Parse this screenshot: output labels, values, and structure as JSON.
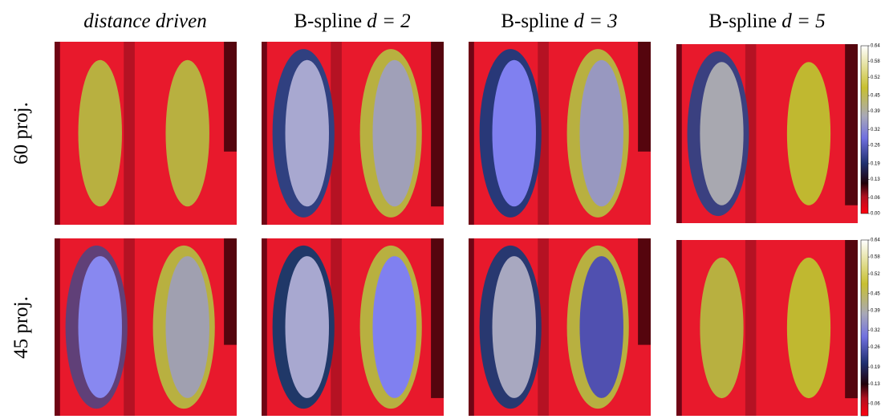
{
  "columns": [
    {
      "text": "distance driven"
    },
    {
      "text": "B-spline",
      "math": "d = 2"
    },
    {
      "text": "B-spline",
      "math": "d = 3"
    },
    {
      "text": "B-spline",
      "math": "d = 5"
    }
  ],
  "rows": [
    "60 proj.",
    "45 proj."
  ],
  "colorbars": [
    {
      "lim": [
        0,
        0.64
      ],
      "ticks": [
        {
          "value": 0,
          "label": "0.00"
        },
        {
          "value": 0.06,
          "label": "0.06"
        },
        {
          "value": 0.13,
          "label": "0.13"
        },
        {
          "value": 0.19,
          "label": "0.19"
        },
        {
          "value": 0.26,
          "label": "0.26"
        },
        {
          "value": 0.32,
          "label": "0.32"
        },
        {
          "value": 0.39,
          "label": "0.39"
        },
        {
          "value": 0.45,
          "label": "0.45"
        },
        {
          "value": 0.52,
          "label": "0.52"
        },
        {
          "value": 0.58,
          "label": "0.58"
        },
        {
          "value": 0.64,
          "label": "0.64"
        }
      ]
    },
    {
      "lim": [
        0,
        0.64
      ],
      "ticks": [
        {
          "value": 0.06,
          "label": "0.06"
        },
        {
          "value": 0.13,
          "label": "0.13"
        },
        {
          "value": 0.19,
          "label": "0.19"
        },
        {
          "value": 0.26,
          "label": "0.26"
        },
        {
          "value": 0.32,
          "label": "0.32"
        },
        {
          "value": 0.39,
          "label": "0.39"
        },
        {
          "value": 0.45,
          "label": "0.45"
        },
        {
          "value": 0.52,
          "label": "0.52"
        },
        {
          "value": 0.58,
          "label": "0.58"
        },
        {
          "value": 0.64,
          "label": "0.64"
        }
      ]
    }
  ]
}
